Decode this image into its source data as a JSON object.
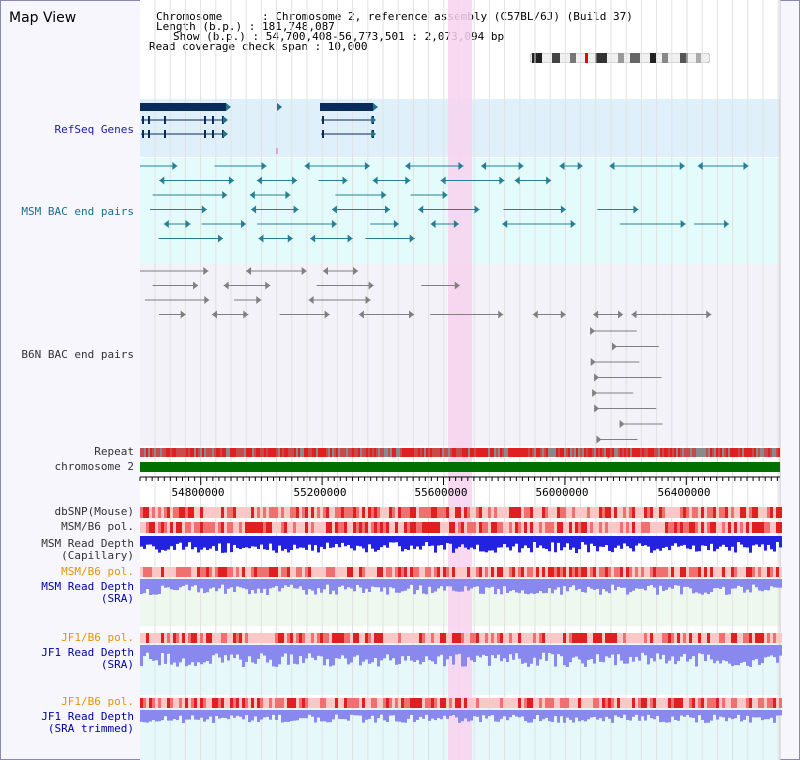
{
  "app": {
    "title": "Map View"
  },
  "header": {
    "chromosome": "Chromosome      : Chromosome 2, reference assembly (C57BL/6J) (Build 37)",
    "length": "Length (b.p.) : 181,748,087",
    "show": "Show (b.p.) : 54,700,408-56,773,501 : 2,073,094 bp",
    "coverage": "Read coverage check span : 10,000"
  },
  "tracks": {
    "refseq": "RefSeq Genes",
    "msm_bac": "MSM BAC end pairs",
    "b6n_bac": "B6N BAC end pairs",
    "repeat": "Repeat",
    "chromosome": "chromosome 2",
    "dbsnp": "dbSNP(Mouse)",
    "msm_b6_pol": "MSM/B6 pol.",
    "msm_read_depth_cap_1": "MSM Read Depth",
    "msm_read_depth_cap_2": "(Capillary)",
    "msm_b6_pol_2": "MSM/B6 pol.",
    "msm_read_depth_sra_1": "MSM Read Depth",
    "msm_read_depth_sra_2": "(SRA)",
    "jf1_b6_pol": "JF1/B6 pol.",
    "jf1_read_depth_sra_1": "JF1 Read Depth",
    "jf1_read_depth_sra_2": "(SRA)",
    "jf1_b6_pol_2": "JF1/B6 pol.",
    "jf1_read_depth_trim_1": "JF1 Read Depth",
    "jf1_read_depth_trim_2": "(SRA trimmed)"
  },
  "axis": {
    "ticks": [
      "54800000",
      "55200000",
      "55600000",
      "56000000",
      "56400000"
    ]
  },
  "colors": {
    "refseq_bg": "#dff0fa",
    "msm_bg": "#e4fbfb",
    "b6n_bg": "#f2f2f8",
    "highlight": "#f8d2ee",
    "gene": "#0a2a5c",
    "msm_feature": "#267f96",
    "b6n_feature": "#808080",
    "chrom_bar": "#007000",
    "depth_cap": "#2222e0",
    "depth_sra": "#8888ee"
  }
}
